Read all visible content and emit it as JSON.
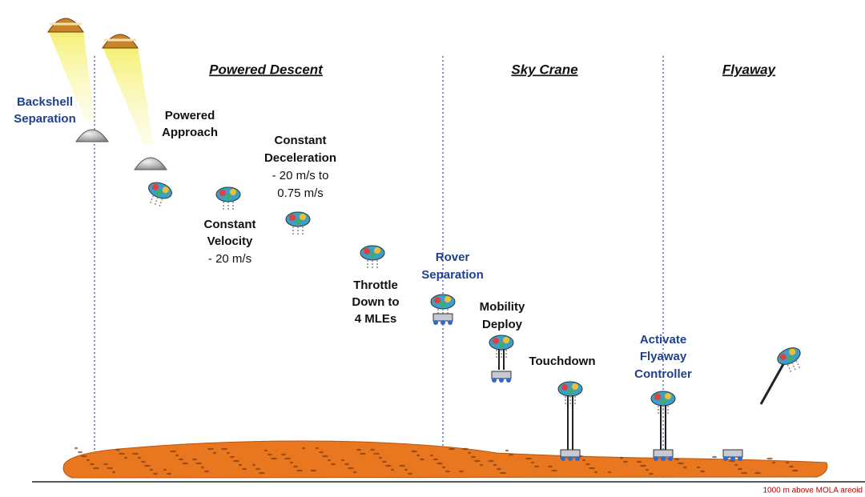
{
  "phases": [
    "Powered Descent",
    "Sky Crane",
    "Flyaway"
  ],
  "labels": [
    {
      "lines": [
        "Backshell",
        "Separation"
      ]
    },
    {
      "lines": [
        "Powered",
        "Approach"
      ]
    },
    {
      "lines": [
        "Constant",
        "Deceleration",
        "- 20 m/s to",
        "0.75 m/s"
      ]
    },
    {
      "lines": [
        "Constant",
        "Velocity",
        "- 20 m/s"
      ]
    },
    {
      "lines": [
        "Throttle",
        "Down to",
        "4 MLEs"
      ]
    },
    {
      "lines": [
        "Rover",
        "Separation"
      ]
    },
    {
      "lines": [
        "Mobility",
        "Deploy"
      ]
    },
    {
      "lines": [
        "Touchdown"
      ]
    },
    {
      "lines": [
        "Activate",
        "Flyaway",
        "Controller"
      ]
    }
  ],
  "footer": "1000 m  above MOLA areoid"
}
